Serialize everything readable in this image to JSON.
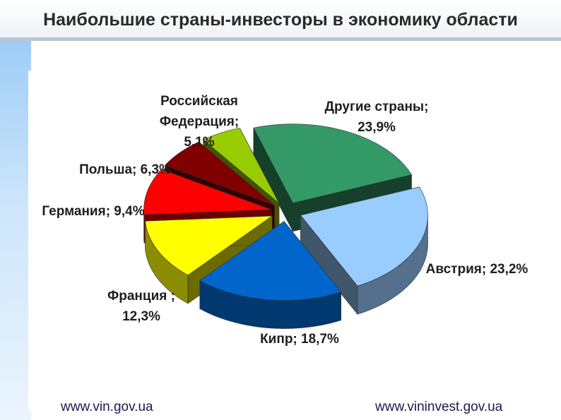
{
  "header": {
    "title": "Наибольшие страны-инвесторы в экономику области"
  },
  "footer": {
    "link_left": "www.vin.gov.ua",
    "link_right": "www.vininvest.gov.ua"
  },
  "chart_data": {
    "type": "pie",
    "title": "",
    "slices": [
      {
        "name": "Другие страны",
        "value": 23.9,
        "label_lines": [
          "Другие страны;",
          "23,9%"
        ],
        "color": "#339966"
      },
      {
        "name": "Австрия",
        "value": 23.2,
        "label_lines": [
          "Австрия; 23,2%"
        ],
        "color": "#99ccff"
      },
      {
        "name": "Кипр",
        "value": 18.7,
        "label_lines": [
          "Кипр; 18,7%"
        ],
        "color": "#0066cc"
      },
      {
        "name": "Франция",
        "value": 12.3,
        "label_lines": [
          "Франция ;",
          "12,3%"
        ],
        "color": "#ffff00"
      },
      {
        "name": "Германия",
        "value": 9.4,
        "label_lines": [
          "Германия; 9,4%"
        ],
        "color": "#ff0000"
      },
      {
        "name": "Польша",
        "value": 6.3,
        "label_lines": [
          "Польша; 6,3%"
        ],
        "color": "#800000"
      },
      {
        "name": "Российская Федерация",
        "value": 5.1,
        "label_lines": [
          "Российская",
          "Федерация;",
          "5,1%"
        ],
        "color": "#99cc00"
      }
    ]
  }
}
